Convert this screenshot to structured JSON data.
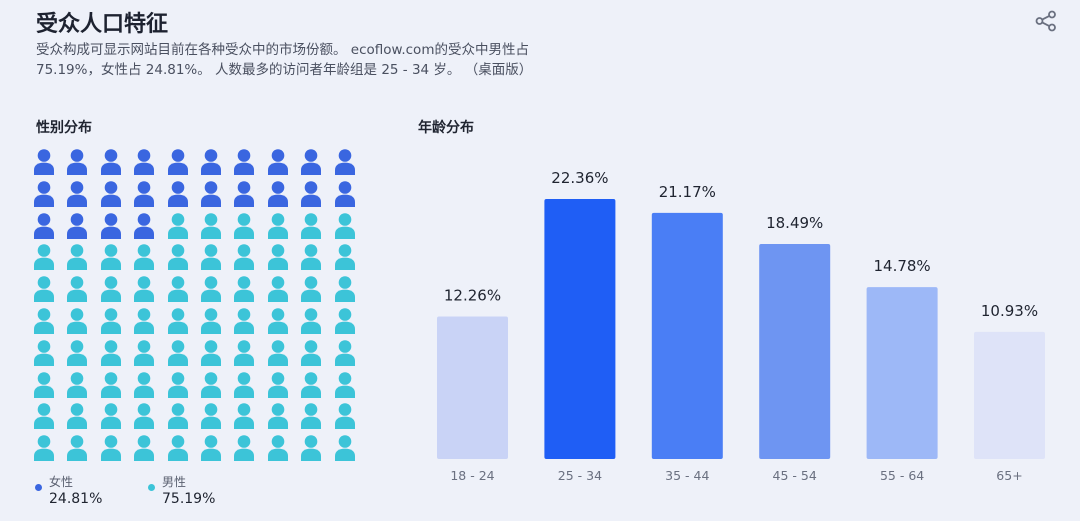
{
  "header": {
    "title": "受众人口特征",
    "description_line1": "受众构成可显示网站目前在各种受众中的市场份额。 ecoflow.com的受众中男性占",
    "description_line2": "75.19%，女性占 24.81%。 人数最多的访问者年龄组是 25 - 34 岁。 （桌面版）",
    "share_icon": "share-icon"
  },
  "gender": {
    "section_title": "性别分布",
    "female_label": "女性",
    "female_value": "24.81%",
    "male_label": "男性",
    "male_value": "75.19%",
    "female_color": "#3a66e0",
    "male_color": "#3cc4d8",
    "grid_female_icons": 24,
    "grid_total_icons": 100
  },
  "age": {
    "section_title": "年龄分布"
  },
  "chart_data": {
    "type": "bar",
    "categories": [
      "18 - 24",
      "25 - 34",
      "35 - 44",
      "45 - 54",
      "55 - 64",
      "65+"
    ],
    "values": [
      12.26,
      22.36,
      21.17,
      18.49,
      14.78,
      10.93
    ],
    "value_labels": [
      "12.26%",
      "22.36%",
      "21.17%",
      "18.49%",
      "14.78%",
      "10.93%"
    ],
    "bar_colors": [
      "#c9d3f6",
      "#1f5ef5",
      "#4a7ef5",
      "#6e95f2",
      "#9db8f7",
      "#dee3f8"
    ],
    "title": "",
    "xlabel": "",
    "ylabel": "",
    "ylim": [
      0,
      22.36
    ]
  }
}
